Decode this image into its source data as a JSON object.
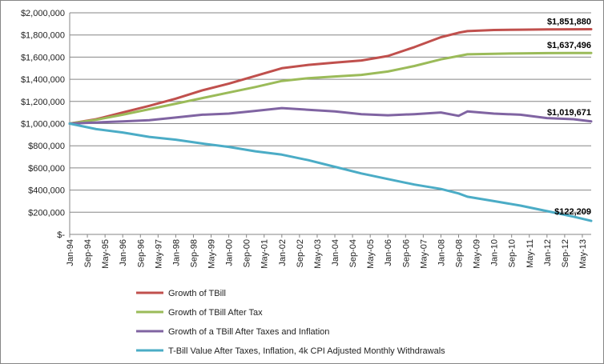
{
  "chart_data": {
    "type": "line",
    "title": "",
    "xlabel": "",
    "ylabel": "",
    "ylim": [
      0,
      2000000
    ],
    "yticks": [
      "$2,000,000",
      "$1,800,000",
      "$1,600,000",
      "$1,400,000",
      "$1,200,000",
      "$1,000,000",
      "$800,000",
      "$600,000",
      "$400,000",
      "$200,000",
      "$-"
    ],
    "xticks": [
      "Jan-94",
      "Sep-94",
      "May-95",
      "Jan-96",
      "Sep-96",
      "May-97",
      "Jan-98",
      "Sep-98",
      "May-99",
      "Jan-00",
      "Sep-00",
      "May-01",
      "Jan-02",
      "Sep-02",
      "May-03",
      "Jan-04",
      "Sep-04",
      "May-05",
      "Jan-06",
      "Sep-06",
      "May-07",
      "Jan-08",
      "Sep-08",
      "May-09",
      "Jan-10",
      "Sep-10",
      "May-11",
      "Jan-12",
      "Sep-12",
      "May-13"
    ],
    "grid": "horizontal",
    "legend_position": "bottom",
    "series": [
      {
        "name": "Growth of TBill",
        "color": "#C0504D",
        "end_label": "$1,851,880",
        "points": [
          [
            "Jan-94",
            1000000
          ],
          [
            "Jan-95",
            1040000
          ],
          [
            "Jan-96",
            1100000
          ],
          [
            "Jan-97",
            1160000
          ],
          [
            "Jan-98",
            1225000
          ],
          [
            "Jan-99",
            1300000
          ],
          [
            "Jan-00",
            1360000
          ],
          [
            "Jan-01",
            1430000
          ],
          [
            "Jan-02",
            1500000
          ],
          [
            "Jan-03",
            1530000
          ],
          [
            "Jan-04",
            1550000
          ],
          [
            "Jan-05",
            1570000
          ],
          [
            "Jan-06",
            1610000
          ],
          [
            "Jan-07",
            1690000
          ],
          [
            "Jan-08",
            1780000
          ],
          [
            "Sep-08",
            1820000
          ],
          [
            "Jan-09",
            1835000
          ],
          [
            "Jan-10",
            1845000
          ],
          [
            "Jan-11",
            1848000
          ],
          [
            "Jan-12",
            1850000
          ],
          [
            "Jan-13",
            1851000
          ],
          [
            "Sep-13",
            1851880
          ]
        ]
      },
      {
        "name": "Growth of TBill After Tax",
        "color": "#9BBB59",
        "end_label": "$1,637,496",
        "points": [
          [
            "Jan-94",
            1000000
          ],
          [
            "Jan-95",
            1035000
          ],
          [
            "Jan-96",
            1080000
          ],
          [
            "Jan-97",
            1130000
          ],
          [
            "Jan-98",
            1180000
          ],
          [
            "Jan-99",
            1230000
          ],
          [
            "Jan-00",
            1280000
          ],
          [
            "Jan-01",
            1330000
          ],
          [
            "Jan-02",
            1385000
          ],
          [
            "Jan-03",
            1410000
          ],
          [
            "Jan-04",
            1425000
          ],
          [
            "Jan-05",
            1440000
          ],
          [
            "Jan-06",
            1470000
          ],
          [
            "Jan-07",
            1520000
          ],
          [
            "Jan-08",
            1580000
          ],
          [
            "Sep-08",
            1610000
          ],
          [
            "Jan-09",
            1625000
          ],
          [
            "Jan-10",
            1630000
          ],
          [
            "Jan-11",
            1634000
          ],
          [
            "Jan-12",
            1636000
          ],
          [
            "Jan-13",
            1637000
          ],
          [
            "Sep-13",
            1637496
          ]
        ]
      },
      {
        "name": "Growth of a TBill After Taxes and Inflation",
        "color": "#8064A2",
        "end_label": "$1,019,671",
        "points": [
          [
            "Jan-94",
            1000000
          ],
          [
            "Jan-95",
            1010000
          ],
          [
            "Jan-96",
            1020000
          ],
          [
            "Jan-97",
            1030000
          ],
          [
            "Jan-98",
            1055000
          ],
          [
            "Jan-99",
            1080000
          ],
          [
            "Jan-00",
            1090000
          ],
          [
            "Jan-01",
            1115000
          ],
          [
            "Jan-02",
            1140000
          ],
          [
            "Jan-03",
            1125000
          ],
          [
            "Jan-04",
            1110000
          ],
          [
            "Jan-05",
            1085000
          ],
          [
            "Jan-06",
            1075000
          ],
          [
            "Jan-07",
            1085000
          ],
          [
            "Jan-08",
            1100000
          ],
          [
            "Sep-08",
            1070000
          ],
          [
            "Jan-09",
            1110000
          ],
          [
            "Jan-10",
            1090000
          ],
          [
            "Jan-11",
            1080000
          ],
          [
            "Jan-12",
            1050000
          ],
          [
            "Jan-13",
            1040000
          ],
          [
            "Sep-13",
            1019671
          ]
        ]
      },
      {
        "name": "T-Bill Value After Taxes, Inflation,  4k CPI Adjusted Monthly Withdrawals",
        "color": "#4BACC6",
        "end_label": "$122,209",
        "points": [
          [
            "Jan-94",
            1000000
          ],
          [
            "Jan-95",
            950000
          ],
          [
            "Jan-96",
            920000
          ],
          [
            "Jan-97",
            880000
          ],
          [
            "Jan-98",
            855000
          ],
          [
            "Jan-99",
            820000
          ],
          [
            "Jan-00",
            790000
          ],
          [
            "Jan-01",
            750000
          ],
          [
            "Jan-02",
            720000
          ],
          [
            "Jan-03",
            670000
          ],
          [
            "Jan-04",
            610000
          ],
          [
            "Jan-05",
            550000
          ],
          [
            "Jan-06",
            500000
          ],
          [
            "Jan-07",
            450000
          ],
          [
            "Jan-08",
            410000
          ],
          [
            "Sep-08",
            370000
          ],
          [
            "Jan-09",
            340000
          ],
          [
            "Jan-10",
            300000
          ],
          [
            "Jan-11",
            260000
          ],
          [
            "Jan-12",
            210000
          ],
          [
            "Jan-13",
            160000
          ],
          [
            "Sep-13",
            122209
          ]
        ]
      }
    ]
  }
}
